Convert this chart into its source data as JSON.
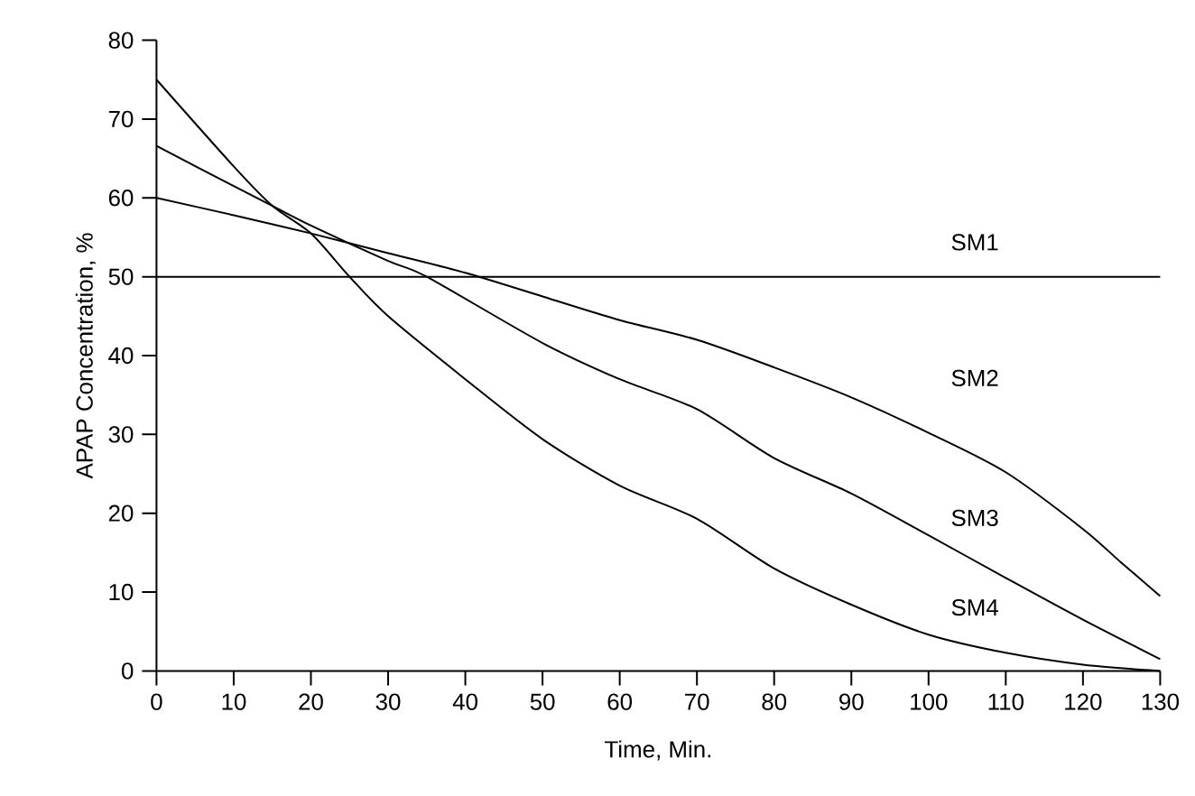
{
  "chart_data": {
    "type": "line",
    "xlabel": "Time, Min.",
    "ylabel": "APAP Concentration, %",
    "xlim": [
      0,
      130
    ],
    "ylim": [
      0,
      80
    ],
    "xticks": [
      0,
      10,
      20,
      30,
      40,
      50,
      60,
      70,
      80,
      90,
      100,
      110,
      120,
      130
    ],
    "yticks": [
      0,
      10,
      20,
      30,
      40,
      50,
      60,
      70,
      80
    ],
    "grid": false,
    "legend": false,
    "marker": "none",
    "line_style": "solid",
    "series": [
      {
        "name": "SM1",
        "color": "#000000",
        "x": [
          0,
          130
        ],
        "values": [
          50,
          50
        ]
      },
      {
        "name": "SM2",
        "color": "#000000",
        "x": [
          0,
          10,
          20,
          30,
          40,
          50,
          60,
          70,
          80,
          90,
          100,
          110,
          120,
          125,
          130
        ],
        "values": [
          60,
          57.8,
          55.5,
          53,
          50.5,
          47.5,
          44.5,
          42,
          38.5,
          34.7,
          30.2,
          25.2,
          18,
          13.7,
          9.5
        ]
      },
      {
        "name": "SM3",
        "color": "#000000",
        "x": [
          0,
          10,
          15,
          20,
          30,
          35,
          50,
          60,
          70,
          80,
          90,
          100,
          110,
          120,
          130
        ],
        "values": [
          66.6,
          61.5,
          59,
          56.5,
          52,
          50,
          41.6,
          37,
          33.2,
          27,
          22.5,
          17.2,
          11.8,
          6.5,
          1.5
        ]
      },
      {
        "name": "SM4",
        "color": "#000000",
        "x": [
          0,
          10,
          15,
          20,
          25,
          30,
          40,
          50,
          60,
          70,
          80,
          90,
          100,
          110,
          120,
          130
        ],
        "values": [
          75,
          64,
          59,
          55.5,
          50,
          45,
          37,
          29.4,
          23.5,
          19.3,
          13,
          8.4,
          4.6,
          2.3,
          0.8,
          0
        ]
      }
    ]
  }
}
